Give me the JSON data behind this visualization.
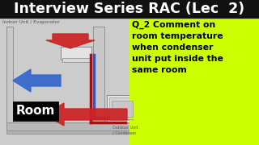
{
  "title": "Interview Series RAC (Lec  2)",
  "title_bg": "#111111",
  "title_color": "#ffffff",
  "title_fontsize": 12.5,
  "main_bg": "#aaaaaa",
  "diagram_bg": "#cccccc",
  "question_bg": "#ccff00",
  "question_text": "Q_2 Comment on\nroom temperature\nwhen condenser\nunit put inside the\nsame room",
  "question_fontsize": 7.8,
  "question_color": "#000000",
  "label_indoor": "Indoor Unit / Evaporator",
  "label_outdoor": "Outdoor Unit\n/ Condenser",
  "label_room": "Room",
  "pipe_color_hot": "#cc0000",
  "pipe_color_cold": "#3355cc",
  "arrow_red_color": "#cc2222",
  "arrow_blue_color": "#3366cc",
  "wall_fill": "#c8c8c8",
  "wall_edge": "#888888",
  "floor_fill": "#b8b8b8",
  "unit_fill": "#e4e4e4",
  "unit_edge": "#888888"
}
